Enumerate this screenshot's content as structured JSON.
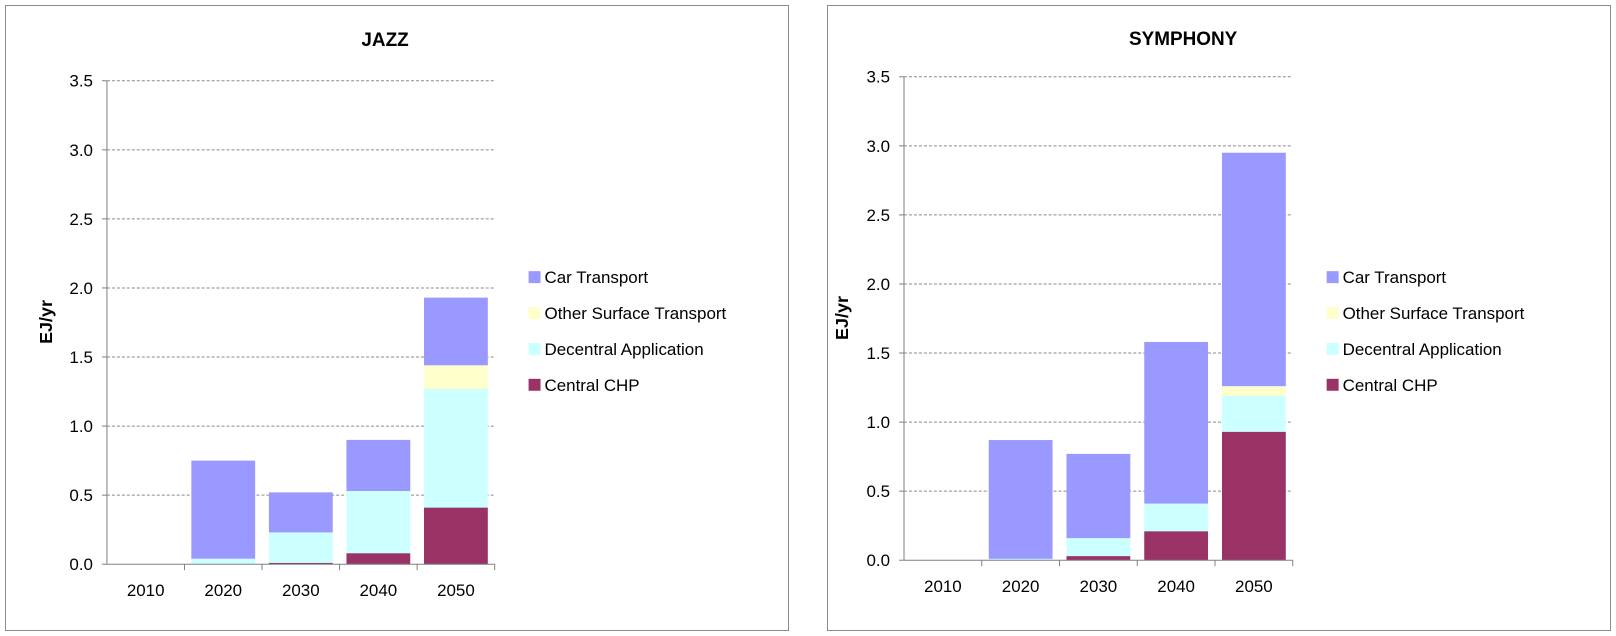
{
  "chart_data": [
    {
      "type": "bar",
      "stacked": true,
      "title": "JAZZ",
      "xlabel": "",
      "ylabel": "EJ/yr",
      "ylim": [
        0,
        3.5
      ],
      "yticks": [
        "0.0",
        "0.5",
        "1.0",
        "1.5",
        "2.0",
        "2.5",
        "3.0",
        "3.5"
      ],
      "grid": true,
      "legend_position": "right",
      "categories": [
        "2010",
        "2020",
        "2030",
        "2040",
        "2050"
      ],
      "series": [
        {
          "name": "Central CHP",
          "color": "#993366",
          "values": [
            0,
            0,
            0.01,
            0.08,
            0.41
          ]
        },
        {
          "name": "Decentral Application",
          "color": "#ccffff",
          "values": [
            0,
            0.04,
            0.22,
            0.45,
            0.86
          ]
        },
        {
          "name": "Other Surface Transport",
          "color": "#ffffcc",
          "values": [
            0,
            0,
            0,
            0,
            0.17
          ]
        },
        {
          "name": "Car Transport",
          "color": "#9999ff",
          "values": [
            0,
            0.71,
            0.29,
            0.37,
            0.49
          ]
        }
      ]
    },
    {
      "type": "bar",
      "stacked": true,
      "title": "SYMPHONY",
      "xlabel": "",
      "ylabel": "EJ/yr",
      "ylim": [
        0,
        3.5
      ],
      "yticks": [
        "0.0",
        "0.5",
        "1.0",
        "1.5",
        "2.0",
        "2.5",
        "3.0",
        "3.5"
      ],
      "grid": true,
      "legend_position": "right",
      "categories": [
        "2010",
        "2020",
        "2030",
        "2040",
        "2050"
      ],
      "series": [
        {
          "name": "Central CHP",
          "color": "#993366",
          "values": [
            0,
            0,
            0.03,
            0.21,
            0.93
          ]
        },
        {
          "name": "Decentral Application",
          "color": "#ccffff",
          "values": [
            0,
            0.01,
            0.13,
            0.2,
            0.26
          ]
        },
        {
          "name": "Other Surface Transport",
          "color": "#ffffcc",
          "values": [
            0,
            0,
            0,
            0,
            0.07
          ]
        },
        {
          "name": "Car Transport",
          "color": "#9999ff",
          "values": [
            0,
            0.86,
            0.61,
            1.17,
            1.69
          ]
        }
      ]
    }
  ]
}
